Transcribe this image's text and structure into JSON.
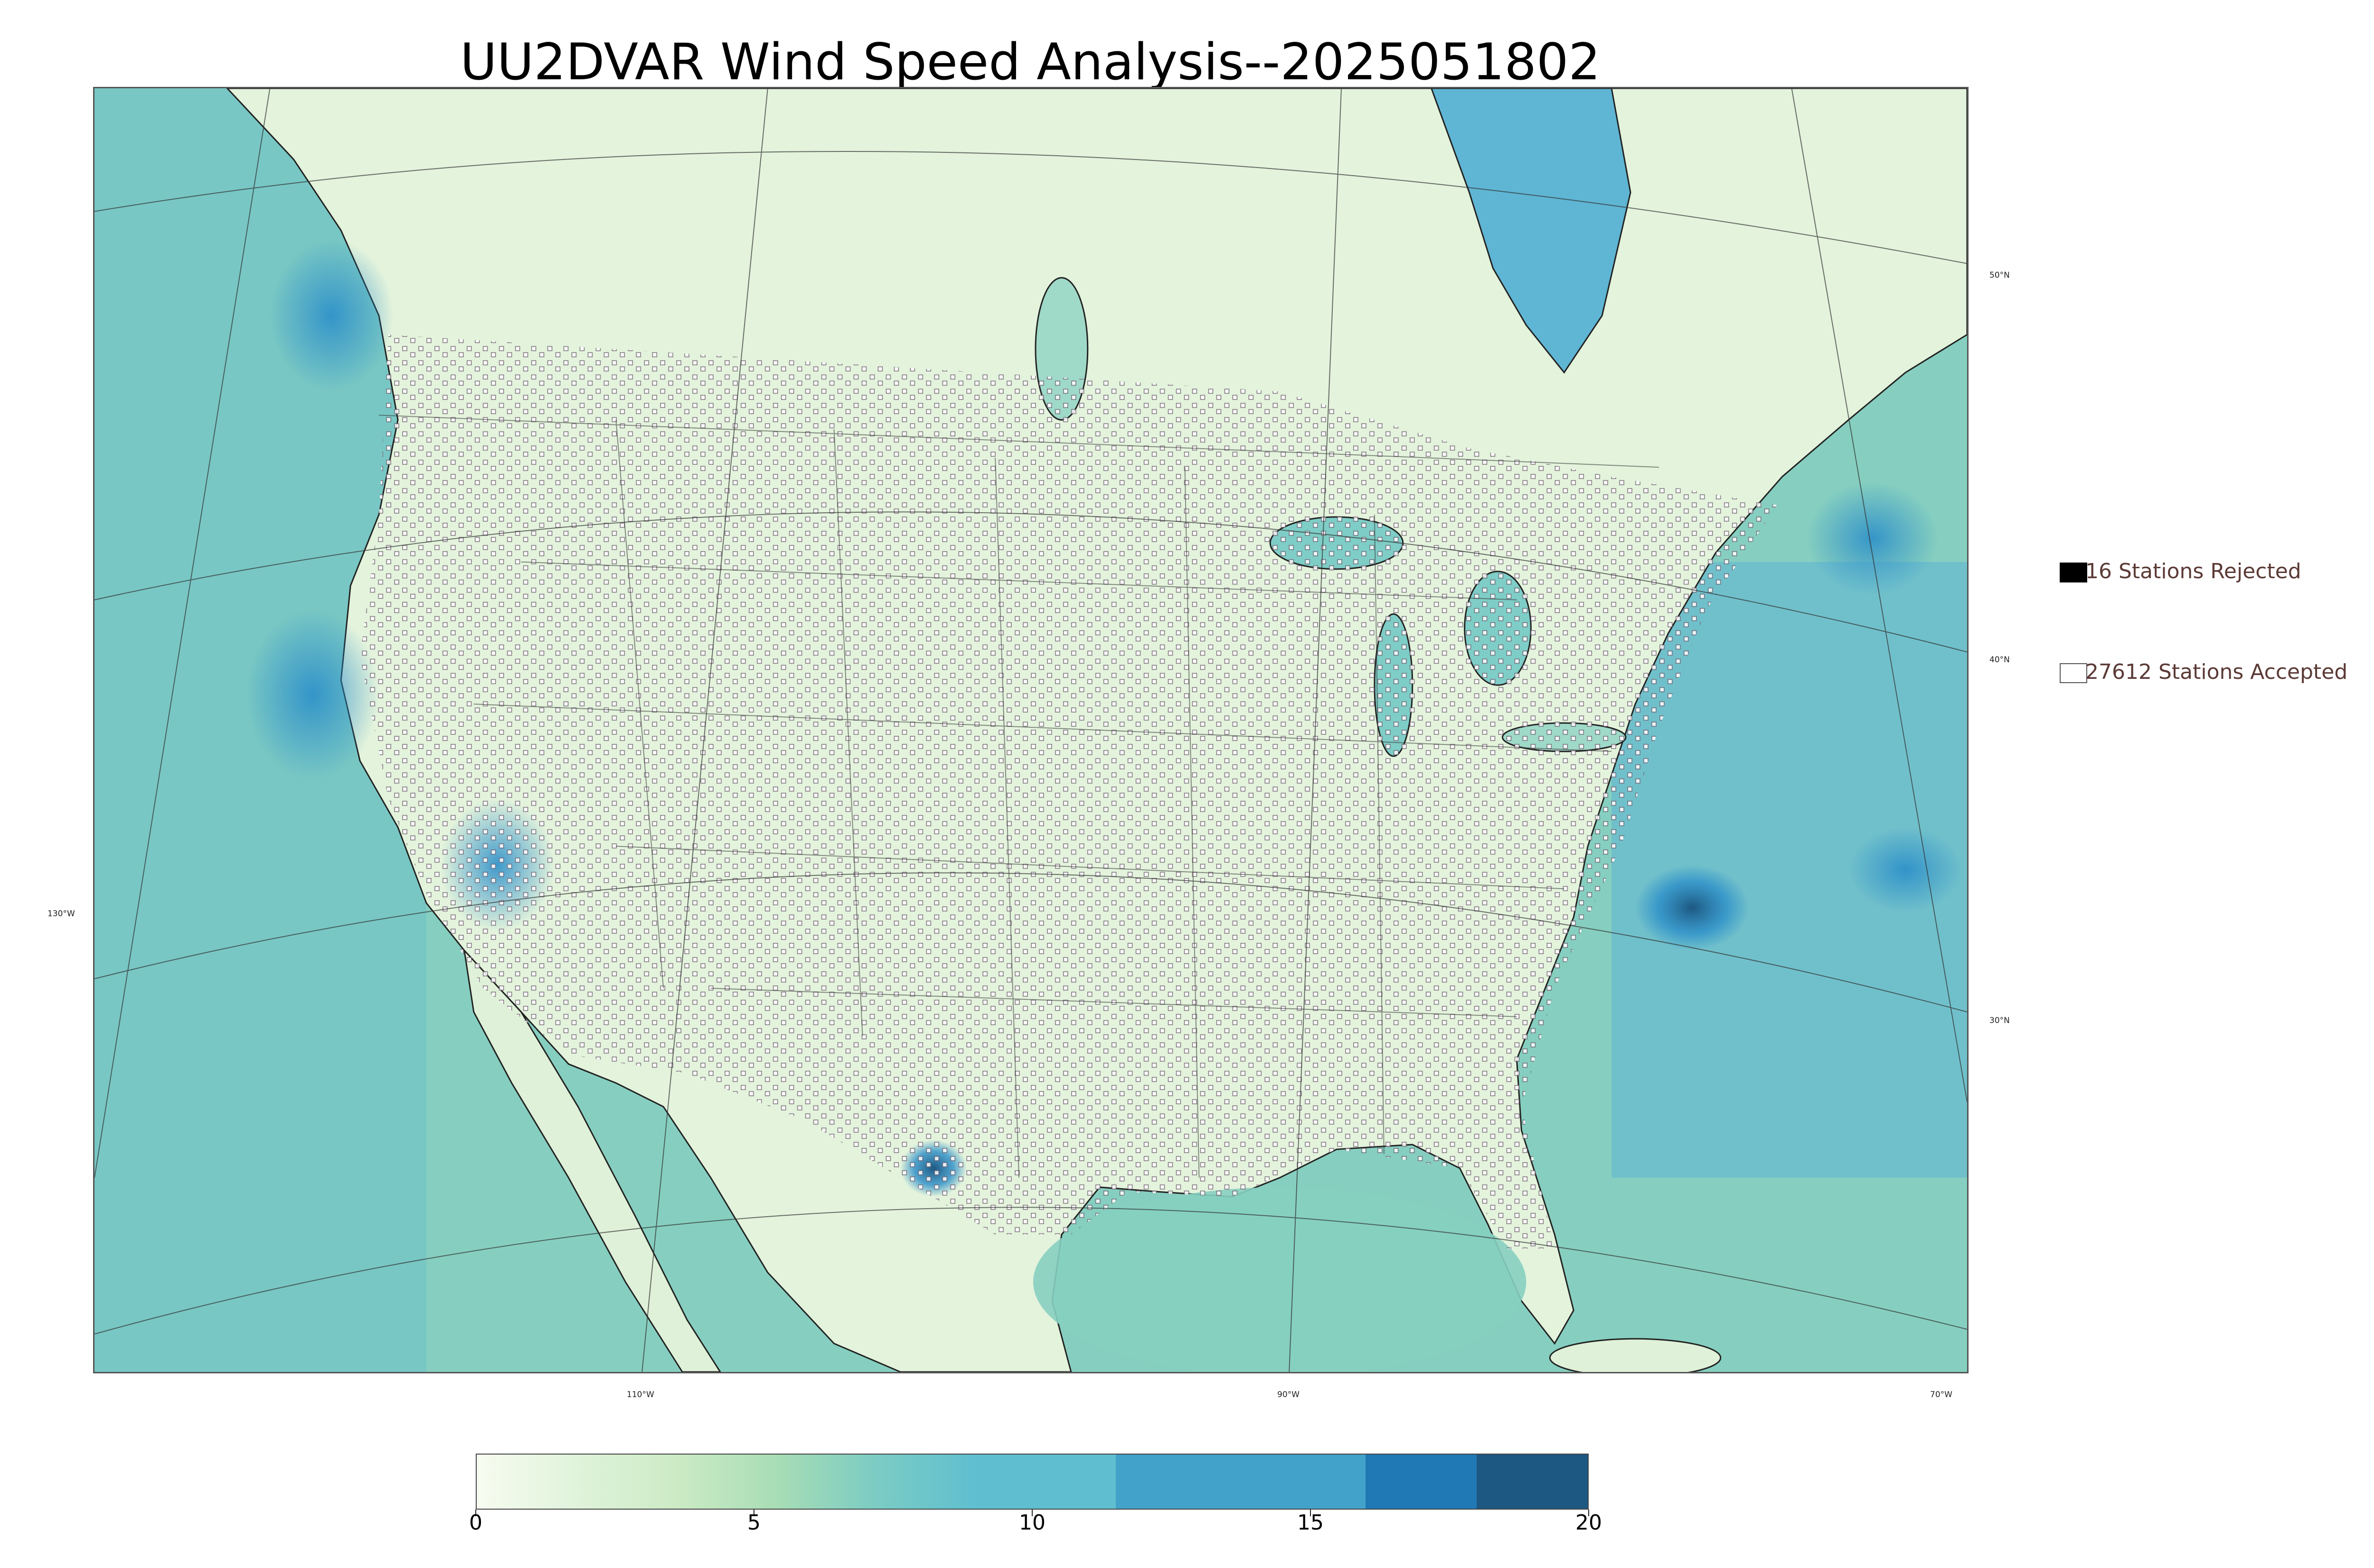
{
  "title": "UU2DVAR Wind Speed Analysis--2025051802",
  "legend": {
    "rejected": {
      "label": "16 Stations Rejected",
      "color": "#000000"
    },
    "accepted": {
      "label": "27612 Stations Accepted",
      "color": "#ffffff"
    }
  },
  "lat_labels": [
    "50°N",
    "40°N",
    "30°N"
  ],
  "lon_labels": [
    "130°W",
    "110°W",
    "90°W",
    "70°W"
  ],
  "colorbar": {
    "ticks": [
      "0",
      "5",
      "10",
      "15",
      "20"
    ],
    "min": 0,
    "max": 20,
    "colors": [
      "#f7fcf0",
      "#e0f3db",
      "#ccebc5",
      "#a8ddb5",
      "#7bccc4",
      "#5fbfd0",
      "#43a2ca",
      "#2079b4",
      "#1d5882"
    ]
  },
  "palette": {
    "ocean": "#7fcbbf",
    "land": "#e6f4df",
    "high_wind": "#2c8fc9"
  }
}
